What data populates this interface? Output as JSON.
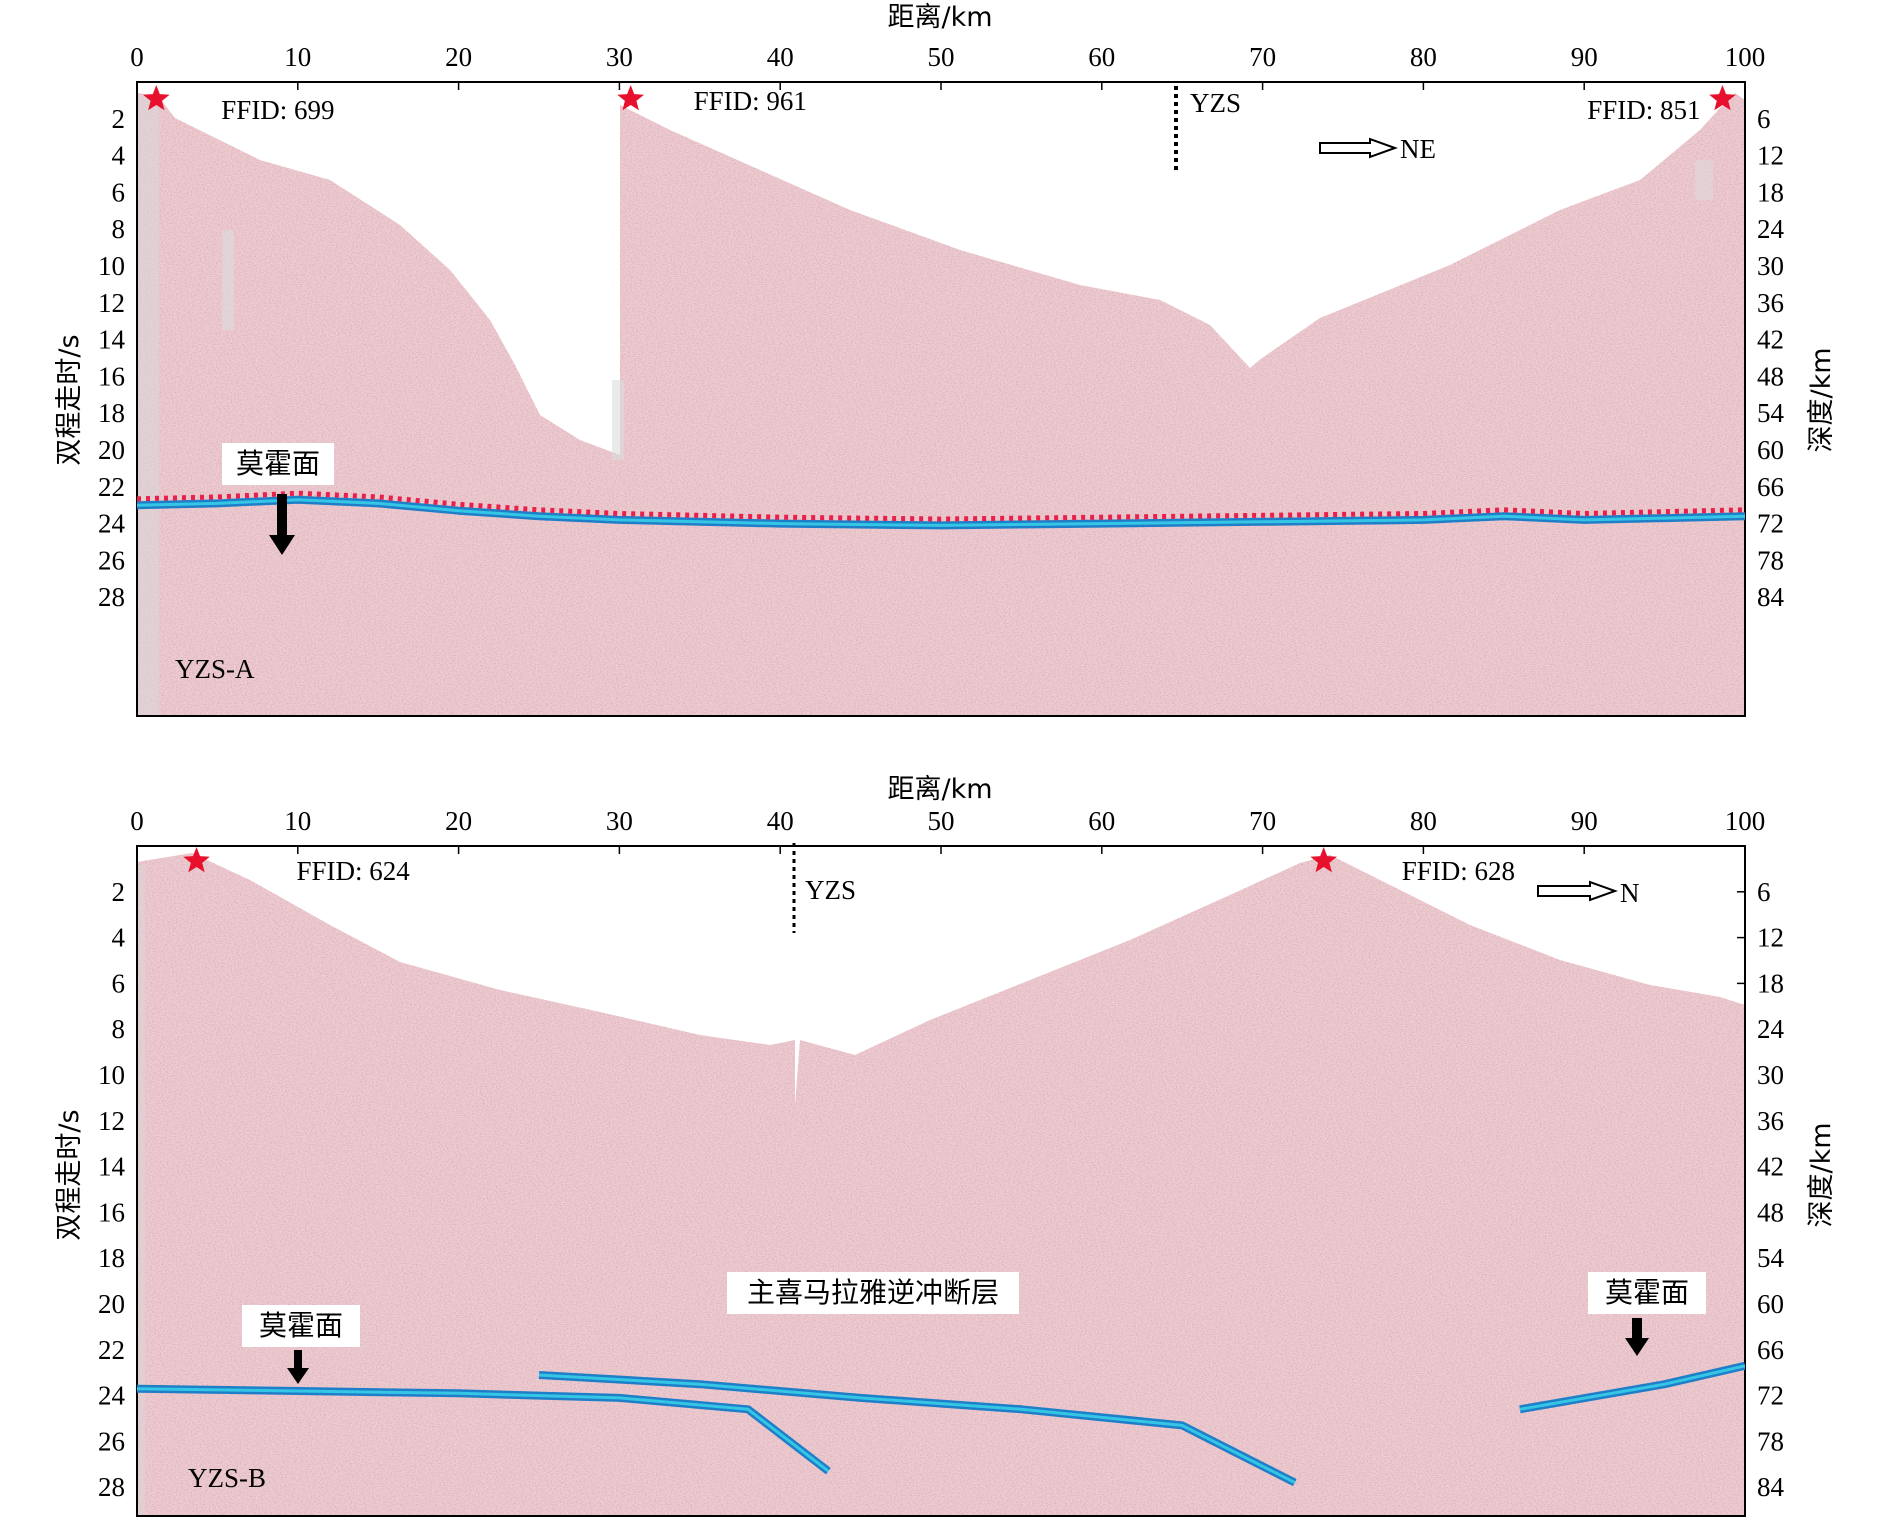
{
  "panels": [
    {
      "id": "top",
      "label": "YZS-A",
      "top_axis_label": "距离/km",
      "left_axis_label": "双程走时/s",
      "right_axis_label": "深度/km",
      "x_ticks": [
        "0",
        "10",
        "20",
        "30",
        "40",
        "50",
        "60",
        "70",
        "80",
        "90",
        "100"
      ],
      "left_ticks": [
        "2",
        "4",
        "6",
        "8",
        "10",
        "12",
        "14",
        "16",
        "18",
        "20",
        "22",
        "24",
        "26",
        "28"
      ],
      "right_ticks": [
        "6",
        "12",
        "18",
        "24",
        "30",
        "36",
        "42",
        "48",
        "54",
        "60",
        "66",
        "72",
        "78",
        "84"
      ],
      "shots": [
        {
          "label": "FFID: 699",
          "km": 1.2
        },
        {
          "label": "FFID: 961",
          "km": 30.7
        },
        {
          "label": "FFID: 851",
          "km": 98.6
        }
      ],
      "marker": {
        "label": "YZS",
        "km": 65
      },
      "direction": {
        "label": "NE"
      },
      "callouts": [
        {
          "text": "莫霍面",
          "km": 9.3,
          "twt": 22.5
        }
      ],
      "moho_twt": [
        [
          0,
          23.0
        ],
        [
          5,
          22.9
        ],
        [
          10,
          22.7
        ],
        [
          15,
          22.9
        ],
        [
          20,
          23.3
        ],
        [
          25,
          23.6
        ],
        [
          30,
          23.8
        ],
        [
          40,
          24.0
        ],
        [
          50,
          24.1
        ],
        [
          60,
          24.0
        ],
        [
          70,
          23.9
        ],
        [
          80,
          23.8
        ],
        [
          85,
          23.6
        ],
        [
          90,
          23.8
        ],
        [
          95,
          23.7
        ],
        [
          100,
          23.6
        ]
      ]
    },
    {
      "id": "bottom",
      "label": "YZS-B",
      "top_axis_label": "距离/km",
      "left_axis_label": "双程走时/s",
      "right_axis_label": "深度/km",
      "x_ticks": [
        "0",
        "10",
        "20",
        "30",
        "40",
        "50",
        "60",
        "70",
        "80",
        "90",
        "100"
      ],
      "left_ticks": [
        "2",
        "4",
        "6",
        "8",
        "10",
        "12",
        "14",
        "16",
        "18",
        "20",
        "22",
        "24",
        "26",
        "28"
      ],
      "right_ticks": [
        "6",
        "12",
        "18",
        "24",
        "30",
        "36",
        "42",
        "48",
        "54",
        "60",
        "66",
        "72",
        "78",
        "84"
      ],
      "shots": [
        {
          "label": "FFID: 624",
          "km": 3.7
        },
        {
          "label": "FFID: 628",
          "km": 73.8
        }
      ],
      "marker": {
        "label": "YZS",
        "km": 41
      },
      "direction": {
        "label": "N"
      },
      "fault_label": "主喜马拉雅逆冲断层",
      "callouts": [
        {
          "text": "莫霍面",
          "km": 10.3,
          "twt": 22.8
        },
        {
          "text": "莫霍面",
          "km": 93.8,
          "twt": 22.5
        }
      ],
      "moho_twt": [
        [
          0,
          23.7
        ],
        [
          10,
          23.8
        ],
        [
          20,
          23.9
        ],
        [
          30,
          24.1
        ],
        [
          38,
          24.6
        ],
        [
          43,
          27.3
        ]
      ],
      "fault_twt": [
        [
          25,
          23.1
        ],
        [
          35,
          23.5
        ],
        [
          45,
          24.1
        ],
        [
          55,
          24.6
        ],
        [
          65,
          25.3
        ],
        [
          72,
          27.8
        ]
      ],
      "moho_right_twt": [
        [
          86,
          24.6
        ],
        [
          95,
          23.5
        ],
        [
          100,
          22.7
        ]
      ]
    }
  ],
  "colors": {
    "seismic_fill": "#f0ccd2",
    "seismic_texture": "#c99aa2",
    "gray_patch": "#dcdcdc",
    "moho_blue": "#1e7fc8",
    "moho_cyan": "#35c6e6",
    "dotted_red": "#e8204a",
    "star_red": "#e8112d"
  }
}
